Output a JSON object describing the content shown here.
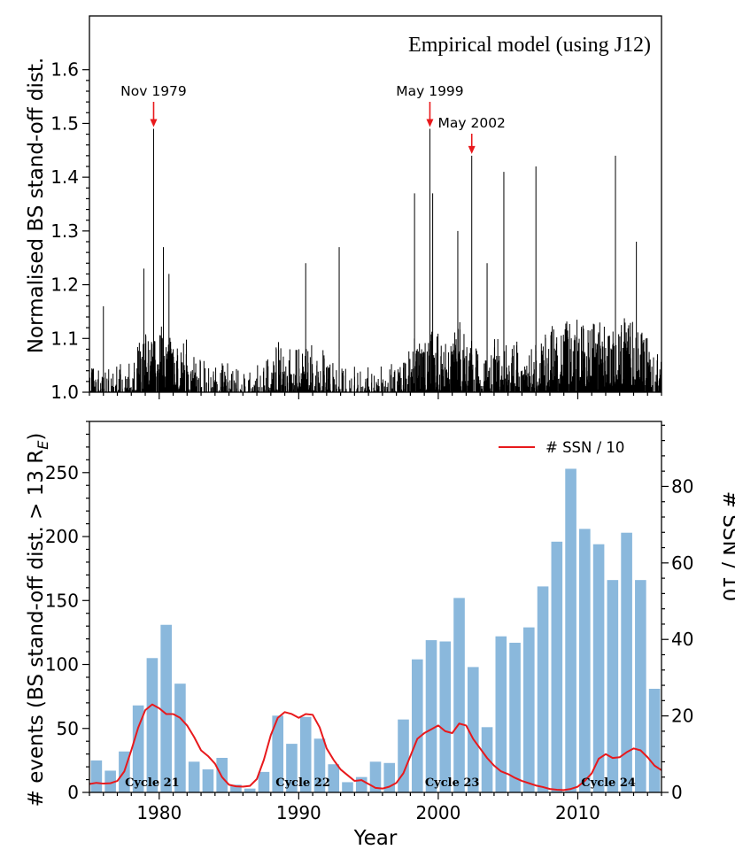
{
  "chart_data": [
    {
      "type": "line",
      "title": "Empirical model (using J12)",
      "xlabel": "",
      "ylabel": "Normalised BS stand-off dist.",
      "xlim": [
        1975,
        2016
      ],
      "ylim": [
        1.0,
        1.7
      ],
      "yticks": [
        1.0,
        1.1,
        1.2,
        1.3,
        1.4,
        1.5,
        1.6
      ],
      "ytick_labels": [
        "1.0",
        "1.1",
        "1.2",
        "1.3",
        "1.4",
        "1.5",
        "1.6"
      ],
      "color": "#000000",
      "peaks": [
        {
          "x": 1976.0,
          "y": 1.16
        },
        {
          "x": 1978.9,
          "y": 1.23
        },
        {
          "x": 1979.6,
          "y": 1.49
        },
        {
          "x": 1980.3,
          "y": 1.27
        },
        {
          "x": 1980.7,
          "y": 1.22
        },
        {
          "x": 1990.5,
          "y": 1.24
        },
        {
          "x": 1992.9,
          "y": 1.27
        },
        {
          "x": 1998.3,
          "y": 1.37
        },
        {
          "x": 1999.4,
          "y": 1.49
        },
        {
          "x": 1999.6,
          "y": 1.37
        },
        {
          "x": 2001.4,
          "y": 1.3
        },
        {
          "x": 2002.4,
          "y": 1.44
        },
        {
          "x": 2003.5,
          "y": 1.24
        },
        {
          "x": 2004.7,
          "y": 1.41
        },
        {
          "x": 2007.0,
          "y": 1.42
        },
        {
          "x": 2012.7,
          "y": 1.44
        },
        {
          "x": 2014.2,
          "y": 1.28
        }
      ],
      "annotations": [
        {
          "text": "Nov 1979",
          "x": 1979.6,
          "y": 1.49
        },
        {
          "text": "May 1999",
          "x": 1999.4,
          "y": 1.49
        },
        {
          "text": "May 2002",
          "x": 2002.4,
          "y": 1.44
        }
      ]
    },
    {
      "type": "bar",
      "xlabel": "Year",
      "ylabel": "# events (BS stand-off dist. > 13 R",
      "ylabel_subscript": "E",
      "ylabel_end": ")",
      "ylabel_right": "# SSN / 10",
      "xlim": [
        1975,
        2016
      ],
      "ylim": [
        0,
        290
      ],
      "ylim_right": [
        0,
        97
      ],
      "xticks": [
        1980,
        1990,
        2000,
        2010
      ],
      "xtick_labels": [
        "1980",
        "1990",
        "2000",
        "2010"
      ],
      "yticks": [
        0,
        50,
        100,
        150,
        200,
        250
      ],
      "ytick_labels": [
        "0",
        "50",
        "100",
        "150",
        "200",
        "250"
      ],
      "yticks_right": [
        0,
        20,
        40,
        60,
        80
      ],
      "ytick_labels_right": [
        "0",
        "20",
        "40",
        "60",
        "80"
      ],
      "legend": {
        "label": "# SSN / 10",
        "position": "top-right"
      },
      "bar_color": "#8ab8dc",
      "line_color": "#e8191c",
      "categories": [
        1975,
        1976,
        1977,
        1978,
        1979,
        1980,
        1981,
        1982,
        1983,
        1984,
        1985,
        1986,
        1987,
        1988,
        1989,
        1990,
        1991,
        1992,
        1993,
        1994,
        1995,
        1996,
        1997,
        1998,
        1999,
        2000,
        2001,
        2002,
        2003,
        2004,
        2005,
        2006,
        2007,
        2008,
        2009,
        2010,
        2011,
        2012,
        2013,
        2014,
        2015
      ],
      "values": [
        25,
        17,
        32,
        68,
        105,
        131,
        85,
        24,
        18,
        27,
        6,
        3,
        16,
        60,
        38,
        59,
        42,
        22,
        8,
        12,
        24,
        23,
        57,
        104,
        119,
        118,
        152,
        98,
        51,
        122,
        117,
        129,
        161,
        196,
        253,
        206,
        194,
        166,
        203,
        166,
        81
      ],
      "ssn_series": {
        "name": "# SSN / 10",
        "x": [
          1975.0,
          1975.5,
          1976.0,
          1976.5,
          1977.0,
          1977.5,
          1978.0,
          1978.5,
          1979.0,
          1979.5,
          1980.0,
          1980.5,
          1981.0,
          1981.5,
          1982.0,
          1982.5,
          1983.0,
          1983.5,
          1984.0,
          1984.5,
          1985.0,
          1985.5,
          1986.0,
          1986.5,
          1987.0,
          1987.5,
          1988.0,
          1988.5,
          1989.0,
          1989.5,
          1990.0,
          1990.5,
          1991.0,
          1991.5,
          1992.0,
          1992.5,
          1993.0,
          1993.5,
          1994.0,
          1994.5,
          1995.0,
          1995.5,
          1996.0,
          1996.5,
          1997.0,
          1997.5,
          1998.0,
          1998.5,
          1999.0,
          1999.5,
          2000.0,
          2000.5,
          2001.0,
          2001.5,
          2002.0,
          2002.5,
          2003.0,
          2003.5,
          2004.0,
          2004.5,
          2005.0,
          2005.5,
          2006.0,
          2006.5,
          2007.0,
          2007.5,
          2008.0,
          2008.5,
          2009.0,
          2009.5,
          2010.0,
          2010.5,
          2011.0,
          2011.5,
          2012.0,
          2012.5,
          2013.0,
          2013.5,
          2014.0,
          2014.5,
          2015.0,
          2015.5,
          2016.0
        ],
        "values": [
          2.2,
          2.5,
          2.3,
          2.4,
          3.0,
          5.5,
          11.0,
          17.0,
          21.5,
          23.0,
          22.0,
          20.5,
          20.5,
          19.5,
          17.5,
          14.5,
          11.0,
          9.5,
          7.5,
          4.0,
          2.0,
          1.6,
          1.5,
          1.7,
          3.5,
          8.5,
          15.0,
          19.5,
          21.0,
          20.5,
          19.5,
          20.5,
          20.3,
          17.0,
          11.5,
          8.5,
          6.0,
          4.5,
          3.0,
          3.2,
          2.2,
          1.2,
          1.0,
          1.5,
          2.5,
          5.0,
          9.5,
          14.0,
          15.5,
          16.5,
          17.5,
          16.0,
          15.5,
          18.0,
          17.5,
          14.0,
          11.5,
          9.0,
          7.0,
          5.5,
          4.8,
          3.8,
          3.0,
          2.4,
          1.8,
          1.4,
          0.9,
          0.7,
          0.6,
          0.9,
          1.5,
          3.0,
          5.0,
          8.8,
          10.0,
          9.0,
          9.2,
          10.5,
          11.5,
          11.0,
          9.2,
          7.0,
          5.8
        ]
      },
      "cycle_labels": [
        {
          "text": "Cycle 21",
          "x": 1979.5
        },
        {
          "text": "Cycle 22",
          "x": 1990.3
        },
        {
          "text": "Cycle 23",
          "x": 2001.0
        },
        {
          "text": "Cycle 24",
          "x": 2012.2
        }
      ]
    }
  ]
}
